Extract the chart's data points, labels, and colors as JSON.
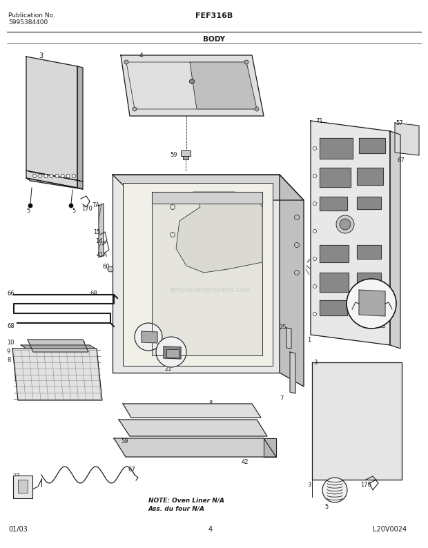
{
  "title_center": "FEF316B",
  "title_section": "BODY",
  "pub_no_label": "Publication No.",
  "pub_no_value": "5995384400",
  "footer_left": "01/03",
  "footer_center": "4",
  "footer_right": "L20V0024",
  "note_line1": "NOTE: Oven Liner N/A",
  "note_line2": "Ass. du four N/A",
  "watermark": "ereplacementparts.com",
  "bg_color": "#ffffff",
  "line_color": "#1a1a1a",
  "gray_light": "#d8d8d8",
  "gray_mid": "#b0b0b0",
  "gray_dark": "#888888",
  "fig_width": 6.2,
  "fig_height": 7.94,
  "dpi": 100
}
